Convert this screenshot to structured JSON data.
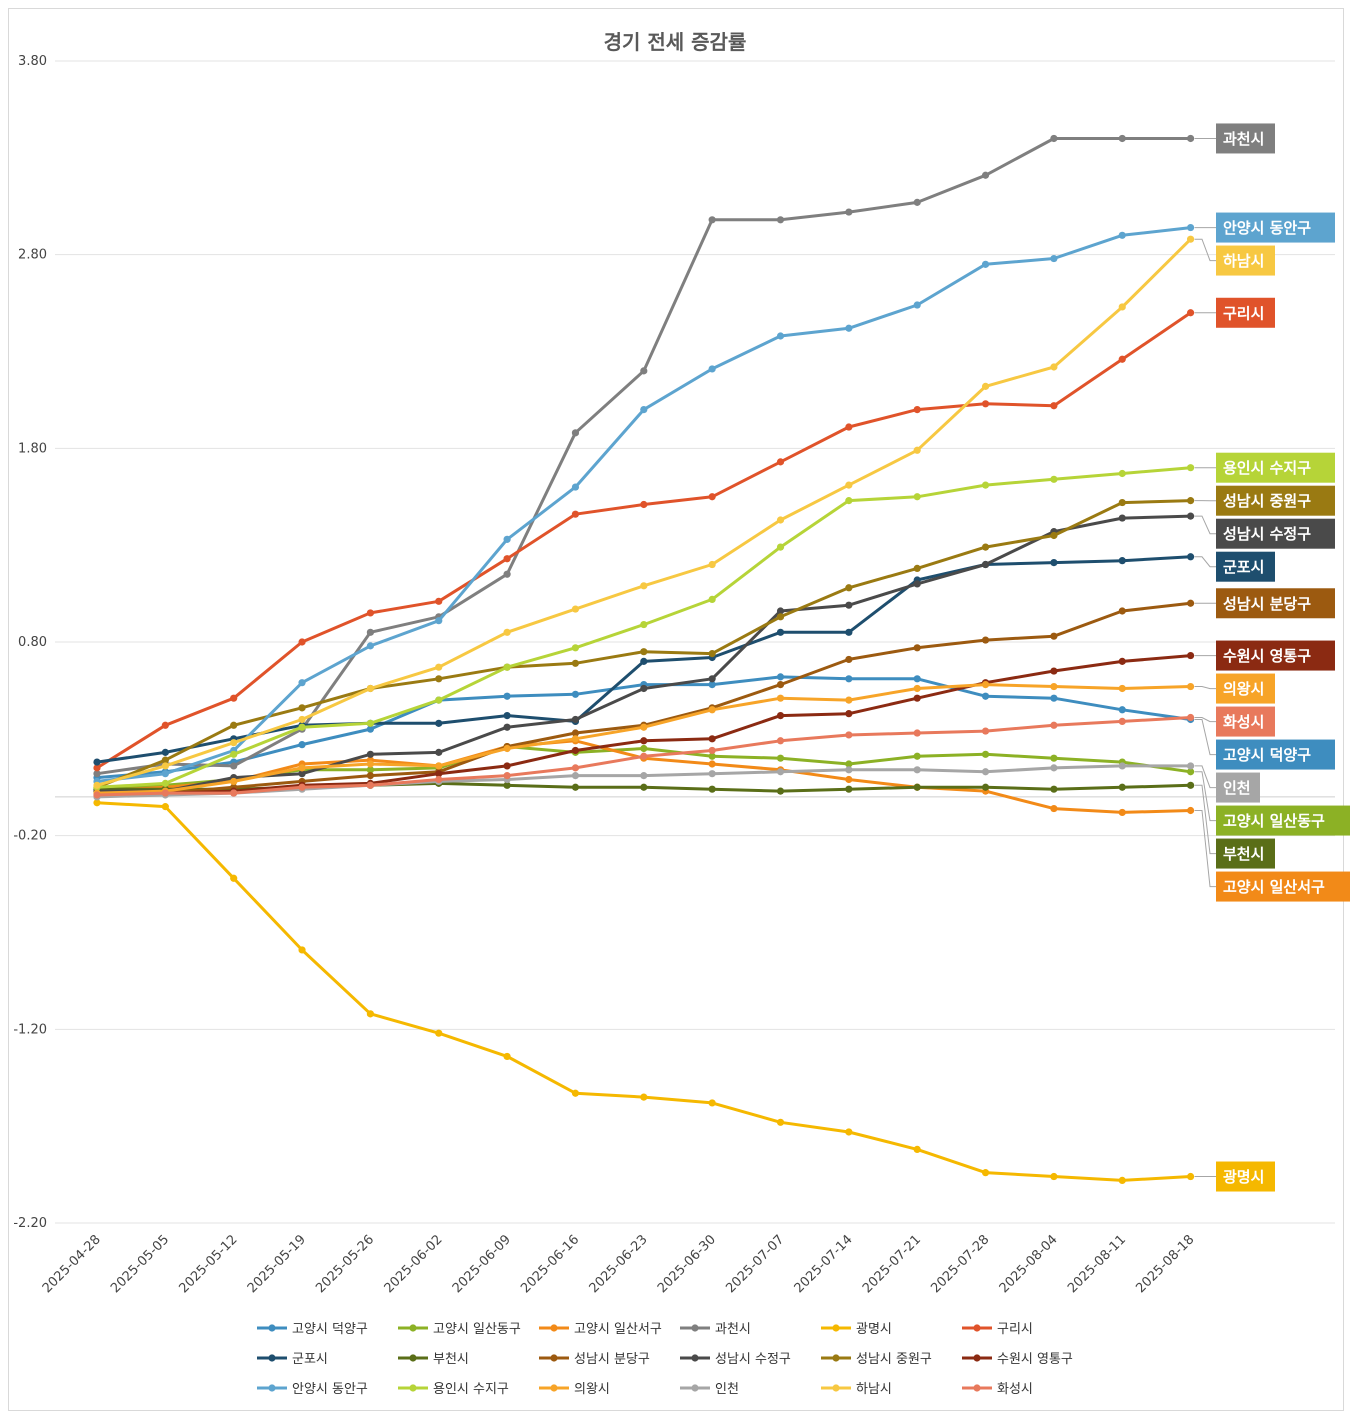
{
  "chart_data": {
    "type": "line",
    "title": "경기 전세 증감률",
    "xlabel": "",
    "ylabel": "",
    "ylim": [
      -2.2,
      3.8
    ],
    "yticks": [
      "3.80",
      "2.80",
      "1.80",
      "0.80",
      "-0.20",
      "-1.20",
      "-2.20"
    ],
    "ytick_values": [
      3.8,
      2.8,
      1.8,
      0.8,
      -0.2,
      -1.2,
      -2.2
    ],
    "grid": true,
    "legend_position": "bottom",
    "x": [
      "2025-04-28",
      "2025-05-05",
      "2025-05-12",
      "2025-05-19",
      "2025-05-26",
      "2025-06-02",
      "2025-06-09",
      "2025-06-16",
      "2025-06-23",
      "2025-06-30",
      "2025-07-07",
      "2025-07-14",
      "2025-07-21",
      "2025-07-28",
      "2025-08-04",
      "2025-08-11",
      "2025-08-18"
    ],
    "series": [
      {
        "name": "고양시 덕양구",
        "color": "#3E8DBF",
        "values": [
          0.1,
          0.13,
          0.18,
          0.27,
          0.35,
          0.5,
          0.52,
          0.53,
          0.58,
          0.58,
          0.62,
          0.61,
          0.61,
          0.52,
          0.51,
          0.45,
          0.4
        ]
      },
      {
        "name": "고양시 일산동구",
        "color": "#8CB125",
        "values": [
          0.04,
          0.06,
          0.09,
          0.14,
          0.14,
          0.15,
          0.26,
          0.23,
          0.25,
          0.21,
          0.2,
          0.17,
          0.21,
          0.22,
          0.2,
          0.18,
          0.13
        ]
      },
      {
        "name": "고양시 일산서구",
        "color": "#F28A18",
        "values": [
          0.03,
          0.05,
          0.08,
          0.17,
          0.19,
          0.16,
          0.26,
          0.29,
          0.2,
          0.17,
          0.14,
          0.09,
          0.05,
          0.03,
          -0.06,
          -0.08,
          -0.07
        ]
      },
      {
        "name": "과천시",
        "color": "#7F7F7F",
        "values": [
          0.12,
          0.17,
          0.16,
          0.35,
          0.85,
          0.93,
          1.15,
          1.88,
          2.2,
          2.98,
          2.98,
          3.02,
          3.07,
          3.21,
          3.4,
          3.4,
          3.4
        ]
      },
      {
        "name": "광명시",
        "color": "#F5B800",
        "values": [
          -0.03,
          -0.05,
          -0.42,
          -0.79,
          -1.12,
          -1.22,
          -1.34,
          -1.53,
          -1.55,
          -1.58,
          -1.68,
          -1.73,
          -1.82,
          -1.94,
          -1.96,
          -1.98,
          -1.96
        ]
      },
      {
        "name": "구리시",
        "color": "#E0532A",
        "values": [
          0.15,
          0.37,
          0.51,
          0.8,
          0.95,
          1.01,
          1.23,
          1.46,
          1.51,
          1.55,
          1.73,
          1.91,
          2.0,
          2.03,
          2.02,
          2.26,
          2.5
        ]
      },
      {
        "name": "군포시",
        "color": "#1E4E6E",
        "values": [
          0.18,
          0.23,
          0.3,
          0.37,
          0.38,
          0.38,
          0.42,
          0.39,
          0.7,
          0.72,
          0.85,
          0.85,
          1.12,
          1.2,
          1.21,
          1.22,
          1.24
        ]
      },
      {
        "name": "부천시",
        "color": "#5A6E18",
        "values": [
          0.04,
          0.04,
          0.04,
          0.05,
          0.06,
          0.07,
          0.06,
          0.05,
          0.05,
          0.04,
          0.03,
          0.04,
          0.05,
          0.05,
          0.04,
          0.05,
          0.06
        ]
      },
      {
        "name": "성남시 분당구",
        "color": "#9C5A10",
        "values": [
          0.02,
          0.02,
          0.05,
          0.08,
          0.11,
          0.13,
          0.26,
          0.33,
          0.37,
          0.46,
          0.58,
          0.71,
          0.77,
          0.81,
          0.83,
          0.96,
          1.0
        ]
      },
      {
        "name": "성남시 수정구",
        "color": "#4A4A4A",
        "values": [
          0.03,
          0.03,
          0.1,
          0.12,
          0.22,
          0.23,
          0.36,
          0.4,
          0.56,
          0.61,
          0.96,
          0.99,
          1.1,
          1.2,
          1.37,
          1.44,
          1.45
        ]
      },
      {
        "name": "성남시 중원구",
        "color": "#9A7A12",
        "values": [
          0.05,
          0.19,
          0.37,
          0.46,
          0.56,
          0.61,
          0.67,
          0.69,
          0.75,
          0.74,
          0.93,
          1.08,
          1.18,
          1.29,
          1.35,
          1.52,
          1.53
        ]
      },
      {
        "name": "수원시 영통구",
        "color": "#8B2A12",
        "values": [
          0.01,
          0.02,
          0.03,
          0.06,
          0.07,
          0.12,
          0.16,
          0.24,
          0.29,
          0.3,
          0.42,
          0.43,
          0.51,
          0.59,
          0.65,
          0.7,
          0.73
        ]
      },
      {
        "name": "안양시 동안구",
        "color": "#5DA4CF",
        "values": [
          0.08,
          0.12,
          0.24,
          0.59,
          0.78,
          0.91,
          1.33,
          1.6,
          2.0,
          2.21,
          2.38,
          2.42,
          2.54,
          2.75,
          2.78,
          2.9,
          2.94
        ]
      },
      {
        "name": "용인시 수지구",
        "color": "#B6D438",
        "values": [
          0.05,
          0.07,
          0.22,
          0.36,
          0.38,
          0.5,
          0.67,
          0.77,
          0.89,
          1.02,
          1.29,
          1.53,
          1.55,
          1.61,
          1.64,
          1.67,
          1.7
        ]
      },
      {
        "name": "의왕시",
        "color": "#F7A428",
        "values": [
          0.02,
          0.03,
          0.08,
          0.15,
          0.17,
          0.16,
          0.25,
          0.3,
          0.36,
          0.45,
          0.51,
          0.5,
          0.56,
          0.58,
          0.57,
          0.56,
          0.57
        ]
      },
      {
        "name": "인천",
        "color": "#A6A6A6",
        "values": [
          0.0,
          0.01,
          0.02,
          0.04,
          0.06,
          0.08,
          0.09,
          0.11,
          0.11,
          0.12,
          0.13,
          0.14,
          0.14,
          0.13,
          0.15,
          0.16,
          0.16
        ]
      },
      {
        "name": "하남시",
        "color": "#F7C842",
        "values": [
          0.06,
          0.16,
          0.28,
          0.4,
          0.56,
          0.67,
          0.85,
          0.97,
          1.09,
          1.2,
          1.43,
          1.61,
          1.79,
          2.12,
          2.22,
          2.53,
          2.88
        ]
      },
      {
        "name": "화성시",
        "color": "#E8795C",
        "values": [
          0.01,
          0.02,
          0.02,
          0.05,
          0.06,
          0.09,
          0.11,
          0.15,
          0.21,
          0.24,
          0.29,
          0.32,
          0.33,
          0.34,
          0.37,
          0.39,
          0.41
        ]
      }
    ],
    "end_labels": [
      {
        "series": "과천시",
        "text": "과천시"
      },
      {
        "series": "안양시 동안구",
        "text": "안양시 동안구"
      },
      {
        "series": "하남시",
        "text": "하남시"
      },
      {
        "series": "구리시",
        "text": "구리시"
      },
      {
        "series": "용인시 수지구",
        "text": "용인시 수지구"
      },
      {
        "series": "성남시 중원구",
        "text": "성남시 중원구"
      },
      {
        "series": "성남시 수정구",
        "text": "성남시 수정구"
      },
      {
        "series": "군포시",
        "text": "군포시"
      },
      {
        "series": "성남시 분당구",
        "text": "성남시 분당구"
      },
      {
        "series": "수원시 영통구",
        "text": "수원시 영통구"
      },
      {
        "series": "의왕시",
        "text": "의왕시"
      },
      {
        "series": "화성시",
        "text": "화성시"
      },
      {
        "series": "고양시 덕양구",
        "text": "고양시 덕양구"
      },
      {
        "series": "인천",
        "text": "인천"
      },
      {
        "series": "고양시 일산동구",
        "text": "고양시 일산동구"
      },
      {
        "series": "부천시",
        "text": "부천시"
      },
      {
        "series": "고양시 일산서구",
        "text": "고양시 일산서구"
      },
      {
        "series": "광명시",
        "text": "광명시"
      }
    ]
  }
}
